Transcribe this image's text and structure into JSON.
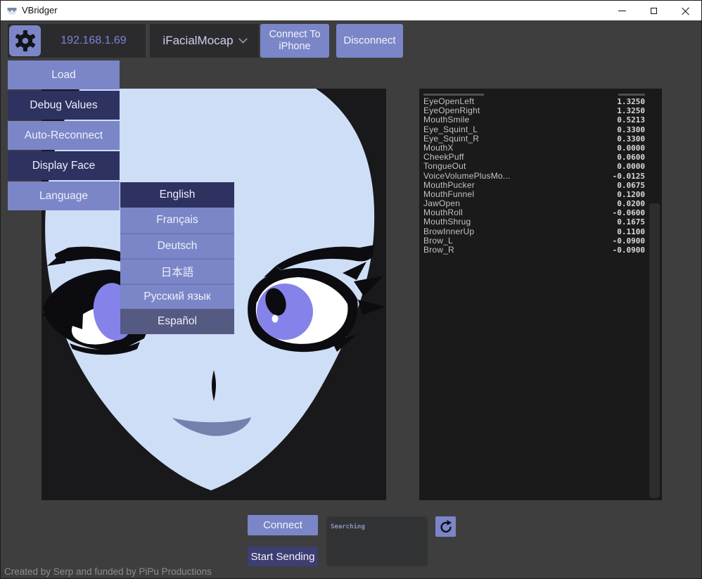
{
  "window": {
    "title": "VBridger"
  },
  "toolbar": {
    "ip_address": "192.168.1.69",
    "tracker_dropdown": {
      "selected": "iFacialMocap"
    },
    "connect_to_iphone_label": "Connect To iPhone",
    "disconnect_label": "Disconnect"
  },
  "menu": {
    "items": [
      {
        "label": "Load"
      },
      {
        "label": "Debug Values"
      },
      {
        "label": "Auto-Reconnect"
      },
      {
        "label": "Display Face"
      },
      {
        "label": "Language"
      }
    ]
  },
  "language_submenu": {
    "items": [
      {
        "label": "English"
      },
      {
        "label": "Français"
      },
      {
        "label": "Deutsch"
      },
      {
        "label": "日本語"
      },
      {
        "label": "Русский язык"
      },
      {
        "label": "Español"
      }
    ]
  },
  "debug_values": {
    "rows": [
      {
        "name": "EyeOpenLeft",
        "value": "1.3250"
      },
      {
        "name": "EyeOpenRight",
        "value": "1.3250"
      },
      {
        "name": "MouthSmile",
        "value": "0.5213"
      },
      {
        "name": "Eye_Squint_L",
        "value": "0.3300"
      },
      {
        "name": "Eye_Squint_R",
        "value": "0.3300"
      },
      {
        "name": "MouthX",
        "value": "0.0000"
      },
      {
        "name": "CheekPuff",
        "value": "0.0600"
      },
      {
        "name": "TongueOut",
        "value": "0.0000"
      },
      {
        "name": "VoiceVolumePlusMo...",
        "value": "-0.0125"
      },
      {
        "name": "MouthPucker",
        "value": "0.0675"
      },
      {
        "name": "MouthFunnel",
        "value": "0.1200"
      },
      {
        "name": "JawOpen",
        "value": "0.0200"
      },
      {
        "name": "MouthRoll",
        "value": "-0.0600"
      },
      {
        "name": "MouthShrug",
        "value": "0.1675"
      },
      {
        "name": "BrowInnerUp",
        "value": "0.1100"
      },
      {
        "name": "Brow_L",
        "value": "-0.0900"
      },
      {
        "name": "Brow_R",
        "value": "-0.0900"
      }
    ]
  },
  "bottom": {
    "connect_label": "Connect",
    "start_sending_label": "Start Sending",
    "search_status": "Searching"
  },
  "footer": {
    "credit": "Created by Serp and funded by PiPu Productions"
  },
  "icons": {
    "app": "vbridger-mask",
    "gear": "gear",
    "chevron_down": "chevron-down",
    "refresh": "refresh",
    "minimize": "minimize",
    "maximize": "maximize",
    "close": "close"
  },
  "colors": {
    "accent_periwinkle": "#7b86c8",
    "menu_dark_navy": "#2d3261",
    "menu_slate_highlight": "#555a83",
    "panel_background": "#19191b",
    "face_skin": "#cfdef7",
    "iris_purple": "#8583ea",
    "mouth_blue": "#7481ad",
    "ip_text": "#7e82d8"
  }
}
